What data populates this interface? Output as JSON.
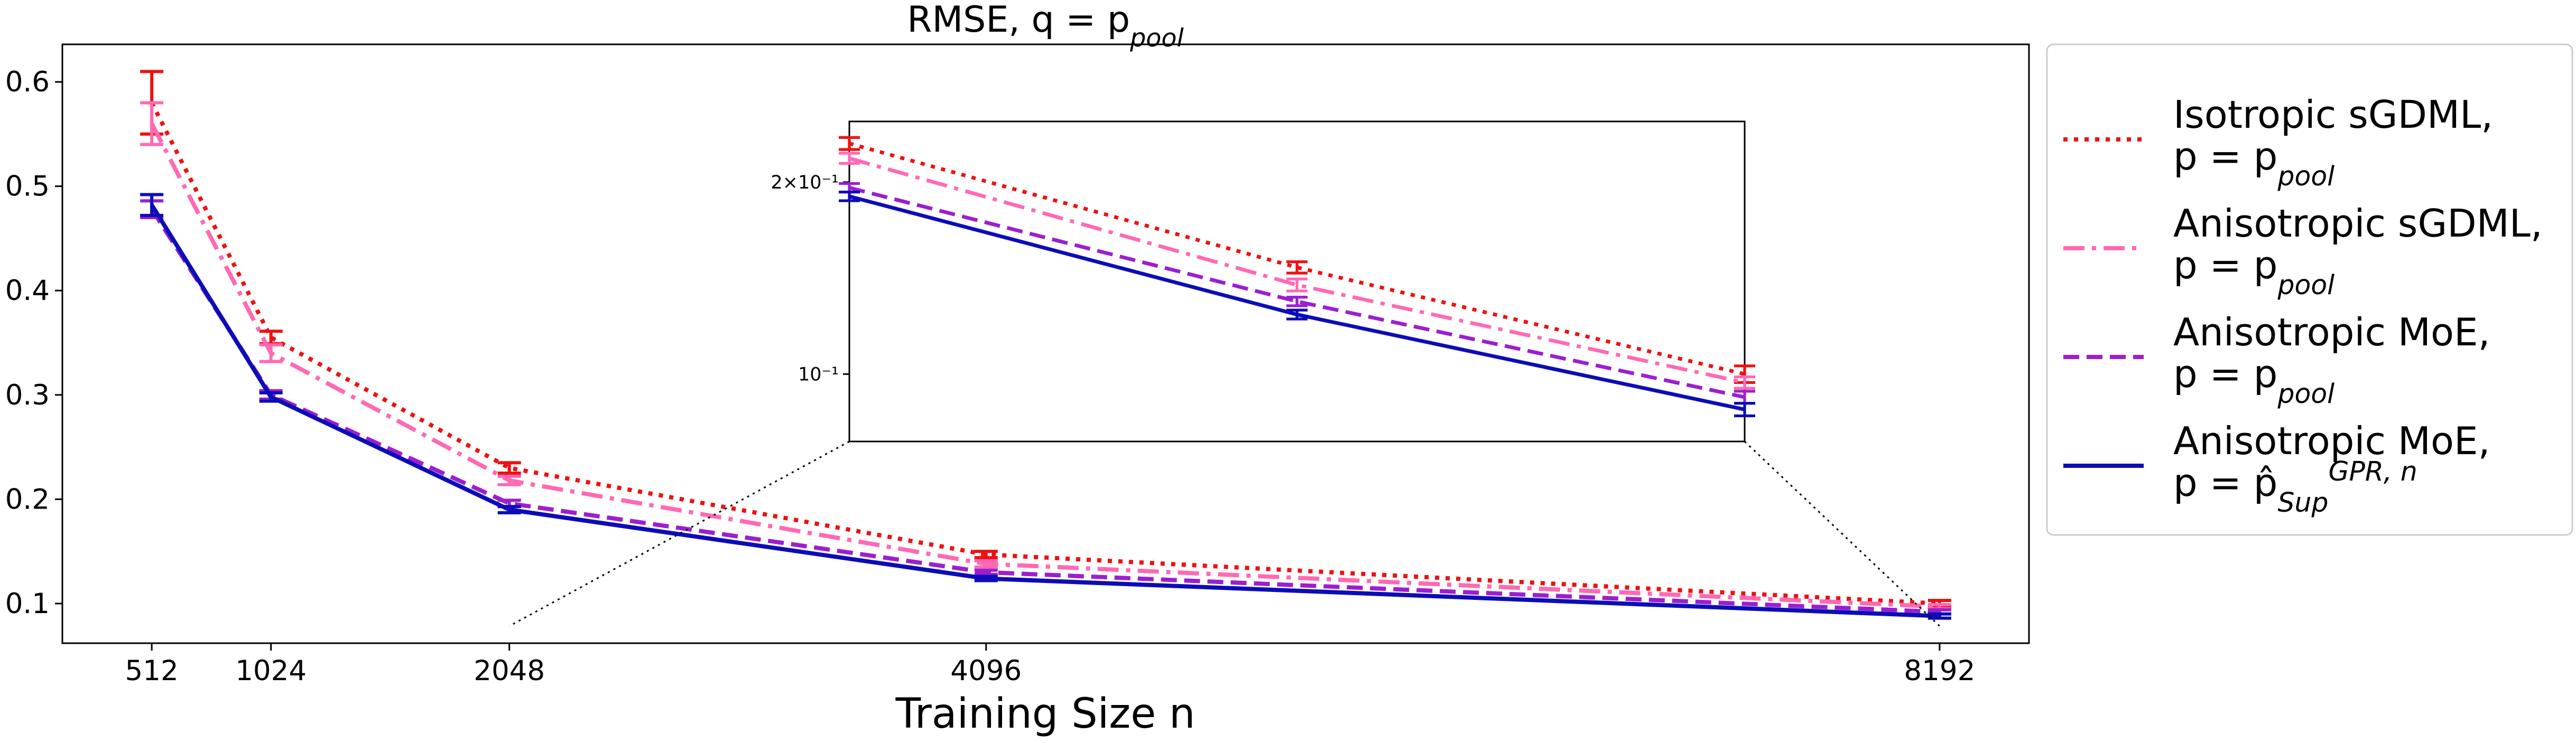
{
  "chart_data": {
    "type": "line",
    "title": "RMSE, q = p_{pool}",
    "x_label": "Training Size n",
    "x": [
      512,
      1024,
      2048,
      4096,
      8192
    ],
    "xlim": [
      128,
      8576
    ],
    "xticks": [
      512,
      1024,
      2048,
      4096,
      8192
    ],
    "ylim": [
      0.062,
      0.636
    ],
    "yticks": [
      0.1,
      0.2,
      0.3,
      0.4,
      0.5,
      0.6
    ],
    "legend": "outside right",
    "series": [
      {
        "name": "Isotropic sGDML, p = p_{pool}",
        "color": "#ee1111",
        "style": "dotted",
        "values": [
          0.58,
          0.355,
          0.23,
          0.147,
          0.1
        ],
        "errors": [
          0.03,
          0.006,
          0.005,
          0.003,
          0.003
        ]
      },
      {
        "name": "Anisotropic sGDML, p = p_{pool}",
        "color": "#ff69b4",
        "style": "dashdot",
        "values": [
          0.56,
          0.34,
          0.218,
          0.138,
          0.097
        ],
        "errors": [
          0.02,
          0.008,
          0.004,
          0.003,
          0.002
        ]
      },
      {
        "name": "Anisotropic MoE, p = p_{pool}",
        "color": "#9b1fd0",
        "style": "dashed",
        "values": [
          0.478,
          0.3,
          0.196,
          0.13,
          0.092
        ],
        "errors": [
          0.008,
          0.004,
          0.003,
          0.002,
          0.002
        ]
      },
      {
        "name": "Anisotropic MoE, p = p̂_{Sup}^{GPR, n}",
        "color": "#0c0cb8",
        "style": "solid",
        "values": [
          0.482,
          0.298,
          0.19,
          0.124,
          0.088
        ],
        "errors": [
          0.01,
          0.004,
          0.003,
          0.002,
          0.002
        ]
      }
    ],
    "inset": {
      "xlim": [
        2048,
        8192
      ],
      "ylim": [
        0.0784,
        0.249
      ],
      "log_x": true,
      "log_y": true,
      "yticks": [
        {
          "value": 0.1,
          "label": "10⁻¹"
        },
        {
          "value": 0.2,
          "label": "2×10⁻¹"
        }
      ]
    }
  }
}
